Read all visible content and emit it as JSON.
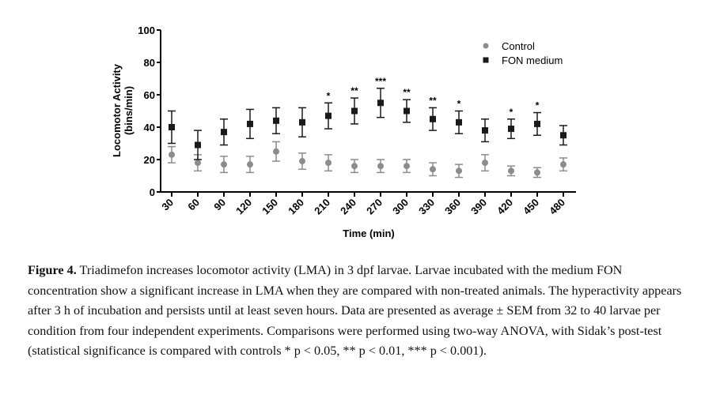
{
  "chart_data": {
    "type": "scatter",
    "xlabel": "Time (min)",
    "ylabel_line1": "Locomotor Activity",
    "ylabel_line2": "(bins/min)",
    "ylim": [
      0,
      100
    ],
    "yticks": [
      "0",
      "20",
      "40",
      "60",
      "80",
      "100"
    ],
    "x": [
      "30",
      "60",
      "90",
      "120",
      "150",
      "180",
      "210",
      "240",
      "270",
      "300",
      "330",
      "360",
      "390",
      "420",
      "450",
      "480"
    ],
    "legend_position": "top-right",
    "series": [
      {
        "name": "Control",
        "marker": "circle",
        "color": "#8c8c8c",
        "values": [
          23,
          18,
          17,
          17,
          25,
          19,
          18,
          16,
          16,
          16,
          14,
          13,
          18,
          13,
          12,
          17
        ],
        "errors": [
          5,
          5,
          5,
          5,
          6,
          5,
          5,
          4,
          4,
          4,
          4,
          4,
          5,
          3,
          3,
          4
        ]
      },
      {
        "name": "FON medium",
        "marker": "square",
        "color": "#1a1a1a",
        "values": [
          40,
          29,
          37,
          42,
          44,
          43,
          47,
          50,
          55,
          50,
          45,
          43,
          38,
          39,
          42,
          35
        ],
        "errors": [
          10,
          9,
          8,
          9,
          8,
          9,
          8,
          8,
          9,
          7,
          7,
          7,
          7,
          6,
          7,
          6
        ]
      }
    ],
    "annotations": [
      "",
      "",
      "",
      "",
      "",
      "",
      "*",
      "**",
      "***",
      "**",
      "**",
      "*",
      "",
      "*",
      "*",
      ""
    ]
  },
  "caption": {
    "label": "Figure 4.",
    "text": "Triadimefon increases locomotor activity (LMA) in 3 dpf larvae. Larvae incubated with the medium FON concentration show a significant increase in LMA when they are compared with non-treated animals. The hyperactivity appears after 3 h of incubation and persists until at least seven hours. Data are presented as average ± SEM from 32 to 40 larvae per condition from four independent experiments. Comparisons were performed using two-way ANOVA, with Sidak’s post-test (statistical significance is compared with controls * p < 0.05, ** p < 0.01, *** p < 0.001)."
  }
}
